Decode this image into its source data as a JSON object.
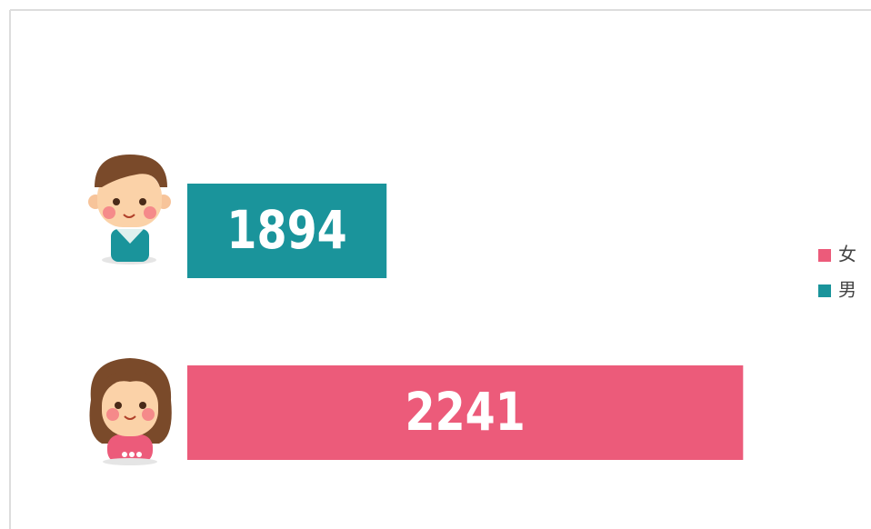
{
  "chart_data": {
    "type": "bar",
    "orientation": "horizontal",
    "series": [
      {
        "name": "女",
        "color": "#ec5b7a",
        "values": [
          2241
        ]
      },
      {
        "name": "男",
        "color": "#1a949b",
        "values": [
          1894
        ]
      }
    ],
    "xlim": [
      1700,
      2300
    ],
    "legend": "right"
  }
}
